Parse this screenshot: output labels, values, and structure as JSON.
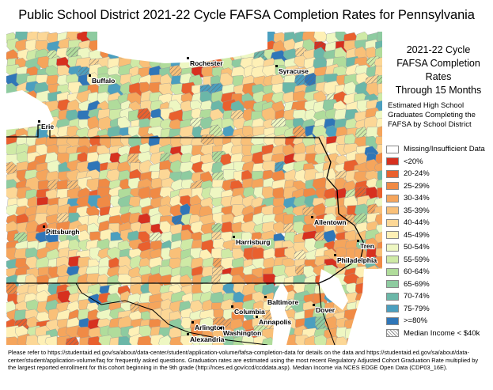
{
  "title": "Public School District 2021-22 Cycle FAFSA Completion Rates for Pennsylvania",
  "legend": {
    "heading_lines": [
      "2021-22 Cycle",
      "FAFSA Completion Rates",
      "Through 15 Months"
    ],
    "subtitle_lines": [
      "Estimated High School",
      "Graduates Completing the",
      "FAFSA by School District"
    ],
    "items": [
      {
        "label": "Missing/Insufficient Data",
        "color": "#ffffff"
      },
      {
        "label": "<20%",
        "color": "#d7301f"
      },
      {
        "label": "20-24%",
        "color": "#e9602e"
      },
      {
        "label": "25-29%",
        "color": "#f08a45"
      },
      {
        "label": "30-34%",
        "color": "#f5a55c"
      },
      {
        "label": "35-39%",
        "color": "#f9c078"
      },
      {
        "label": "40-44%",
        "color": "#fcd796"
      },
      {
        "label": "45-49%",
        "color": "#fef0b6"
      },
      {
        "label": "50-54%",
        "color": "#eef7c2"
      },
      {
        "label": "55-59%",
        "color": "#cfeaa6"
      },
      {
        "label": "60-64%",
        "color": "#b0dc9b"
      },
      {
        "label": "65-69%",
        "color": "#8ecba0"
      },
      {
        "label": "70-74%",
        "color": "#6bb7a8"
      },
      {
        "label": "75-79%",
        "color": "#4b9fbf"
      },
      {
        "label": ">=80%",
        "color": "#2f76b8"
      },
      {
        "label": "Median Income < $40k",
        "color": "hatch"
      }
    ]
  },
  "cities": [
    {
      "name": "Rochester"
    },
    {
      "name": "Syracuse"
    },
    {
      "name": "Buffalo"
    },
    {
      "name": "Erie"
    },
    {
      "name": "Allentown"
    },
    {
      "name": "Pittsburgh"
    },
    {
      "name": "Harrisburg"
    },
    {
      "name": "Tren"
    },
    {
      "name": "Philadelphia"
    },
    {
      "name": "Baltimore"
    },
    {
      "name": "Columbia"
    },
    {
      "name": "Annapolis"
    },
    {
      "name": "Dover"
    },
    {
      "name": "Arlington"
    },
    {
      "name": "Washington"
    },
    {
      "name": "Alexandria"
    }
  ],
  "footnote": "Please refer to https://studentaid.ed.gov/sa/about/data-center/student/application-volume/fafsa-completion-data for details on the data and https://studentaid.ed.gov/sa/about/data-center/student/application-volume/faq for frequently asked questions. Graduation rates are estimated using the most recent Regulatory Adjusted Cohort Graduation Rate multiplied by the largest reported enrollment for this cohort beginning in the 9th grade (http://nces.ed.gov/ccd/ccddata.asp). Median Income via NCES EDGE Open Data (CDP03_16E)."
}
